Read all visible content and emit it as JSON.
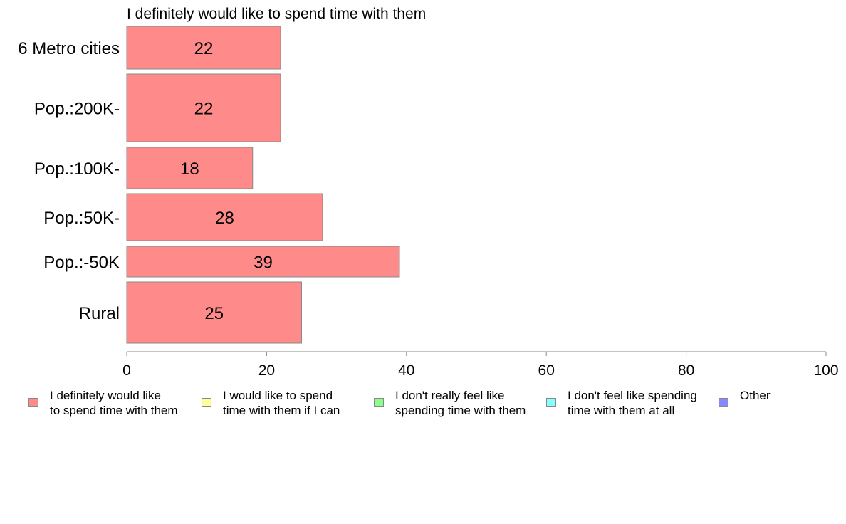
{
  "chart_data": {
    "type": "bar",
    "orientation": "horizontal",
    "title": "I definitely would like to spend time with them",
    "categories": [
      "6 Metro cities",
      "Pop.:200K-",
      "Pop.:100K-",
      "Pop.:50K-",
      "Pop.:-50K",
      "Rural"
    ],
    "values": [
      22,
      22,
      18,
      28,
      39,
      25
    ],
    "data_labels": [
      "22",
      "22",
      "18",
      "28",
      "39",
      "25"
    ],
    "xlim": [
      0,
      100
    ],
    "xticks": [
      0,
      20,
      40,
      60,
      80,
      100
    ],
    "xtick_labels": [
      "0",
      "20",
      "40",
      "60",
      "80",
      "100"
    ],
    "bar_color": "#ff8a8a",
    "bar_border": "#888888",
    "grid": false,
    "legend_position": "bottom",
    "legend": [
      {
        "label": "I definitely would like\nto spend time with them",
        "color": "#ff8a8a"
      },
      {
        "label": "I would like to spend\ntime with them if I can",
        "color": "#ffff99"
      },
      {
        "label": "I don't really feel like\nspending time with them",
        "color": "#88ff88"
      },
      {
        "label": "I don't feel like spending\ntime with them at all",
        "color": "#88ffff"
      },
      {
        "label": "Other",
        "color": "#8888ff"
      }
    ]
  }
}
